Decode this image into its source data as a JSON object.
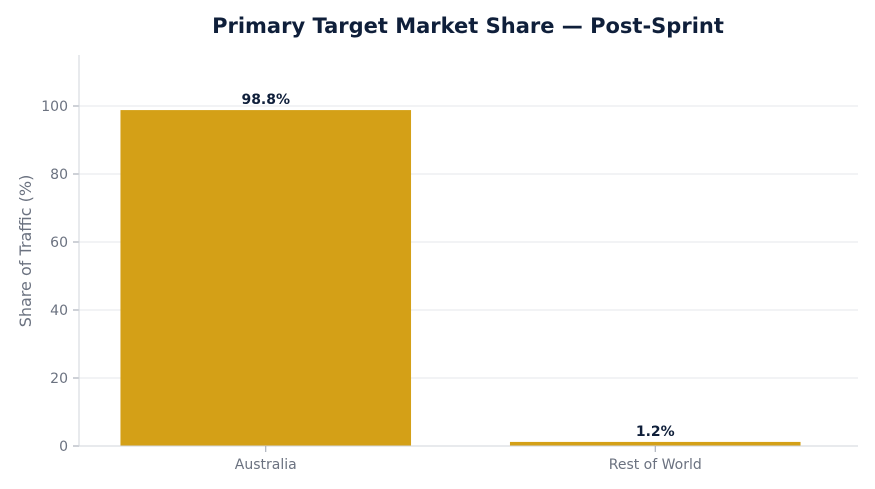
{
  "chart_data": {
    "type": "bar",
    "title": "Primary Target Market Share — Post-Sprint",
    "xlabel": "",
    "ylabel": "Share of Traffic (%)",
    "categories": [
      "Australia",
      "Rest of World"
    ],
    "values": [
      98.8,
      1.2
    ],
    "data_labels": [
      "98.8%",
      "1.2%"
    ],
    "ylim": [
      0,
      115
    ],
    "yticks": [
      0,
      20,
      40,
      60,
      80,
      100
    ],
    "grid": true,
    "bar_color": "#D4A017"
  }
}
